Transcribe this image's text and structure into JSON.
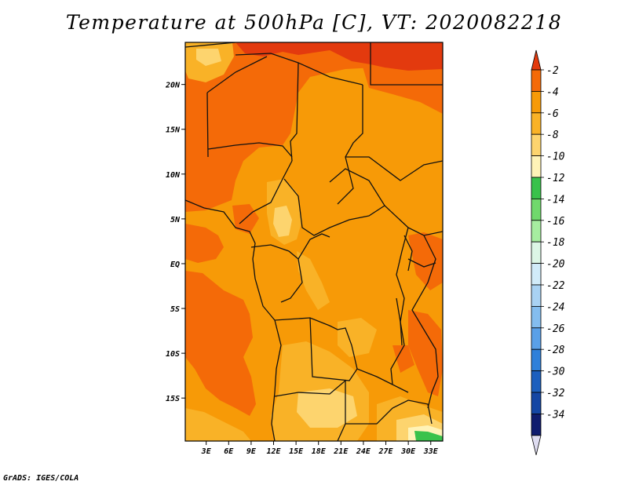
{
  "title": "Temperature at 500hPa [C], VT: 2020082218",
  "credit": "GrADS: IGES/COLA",
  "map": {
    "lat_ticks": [
      {
        "label": "20N",
        "value": 20
      },
      {
        "label": "15N",
        "value": 15
      },
      {
        "label": "10N",
        "value": 10
      },
      {
        "label": "5N",
        "value": 5
      },
      {
        "label": "EQ",
        "value": 0
      },
      {
        "label": "5S",
        "value": -5
      },
      {
        "label": "10S",
        "value": -10
      },
      {
        "label": "15S",
        "value": -15
      }
    ],
    "lon_ticks": [
      {
        "label": "3E",
        "value": 3
      },
      {
        "label": "6E",
        "value": 6
      },
      {
        "label": "9E",
        "value": 9
      },
      {
        "label": "12E",
        "value": 12
      },
      {
        "label": "15E",
        "value": 15
      },
      {
        "label": "18E",
        "value": 18
      },
      {
        "label": "21E",
        "value": 21
      },
      {
        "label": "24E",
        "value": 24
      },
      {
        "label": "27E",
        "value": 27
      },
      {
        "label": "30E",
        "value": 30
      },
      {
        "label": "33E",
        "value": 33
      }
    ],
    "lon_range": [
      0.2,
      34.6
    ],
    "lat_range": [
      -19.8,
      24.7
    ]
  },
  "colorbar": {
    "labels": [
      "-2",
      "-4",
      "-6",
      "-8",
      "-10",
      "-12",
      "-14",
      "-16",
      "-18",
      "-20",
      "-22",
      "-24",
      "-26",
      "-28",
      "-30",
      "-32",
      "-34"
    ],
    "colors": [
      "#e33a0e",
      "#f46a08",
      "#f79a07",
      "#f9b227",
      "#fdd46e",
      "#fff3b7",
      "#39c24b",
      "#70d96c",
      "#a6eda0",
      "#dcf6e6",
      "#d1ebf9",
      "#a9d2f3",
      "#84bdef",
      "#5aa0e8",
      "#2f80da",
      "#1c5fbe",
      "#1446a4",
      "#0f1c6e",
      "#dedcf0"
    ]
  }
}
